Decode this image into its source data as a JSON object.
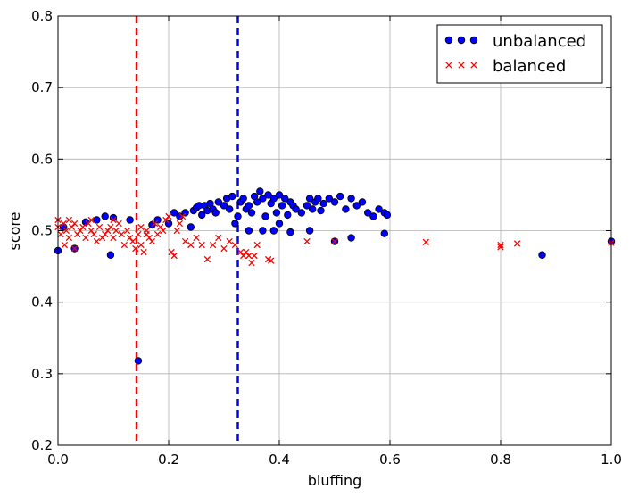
{
  "chart_data": {
    "type": "scatter",
    "xlabel": "bluffing",
    "ylabel": "score",
    "xlim": [
      0.0,
      1.0
    ],
    "ylim": [
      0.2,
      0.8
    ],
    "grid": true,
    "legend_position": "top-right",
    "x_ticks": [
      "0.0",
      "0.2",
      "0.4",
      "0.6",
      "0.8",
      "1.0"
    ],
    "y_ticks": [
      "0.2",
      "0.3",
      "0.4",
      "0.5",
      "0.6",
      "0.7",
      "0.8"
    ],
    "vlines": [
      {
        "x": 0.142,
        "color": "#ff0000",
        "style": "dashed"
      },
      {
        "x": 0.325,
        "color": "#0000ff",
        "style": "dashed"
      }
    ],
    "series": [
      {
        "name": "unbalanced",
        "marker": "circle",
        "color": "#0000ff",
        "points": [
          [
            0.0,
            0.472
          ],
          [
            0.01,
            0.505
          ],
          [
            0.03,
            0.475
          ],
          [
            0.05,
            0.512
          ],
          [
            0.07,
            0.515
          ],
          [
            0.085,
            0.52
          ],
          [
            0.1,
            0.518
          ],
          [
            0.095,
            0.466
          ],
          [
            0.13,
            0.515
          ],
          [
            0.145,
            0.318
          ],
          [
            0.17,
            0.508
          ],
          [
            0.18,
            0.515
          ],
          [
            0.2,
            0.51
          ],
          [
            0.21,
            0.525
          ],
          [
            0.22,
            0.52
          ],
          [
            0.23,
            0.525
          ],
          [
            0.24,
            0.505
          ],
          [
            0.245,
            0.528
          ],
          [
            0.25,
            0.532
          ],
          [
            0.255,
            0.535
          ],
          [
            0.26,
            0.522
          ],
          [
            0.265,
            0.535
          ],
          [
            0.27,
            0.528
          ],
          [
            0.275,
            0.538
          ],
          [
            0.28,
            0.53
          ],
          [
            0.285,
            0.525
          ],
          [
            0.29,
            0.54
          ],
          [
            0.3,
            0.535
          ],
          [
            0.305,
            0.545
          ],
          [
            0.31,
            0.53
          ],
          [
            0.315,
            0.548
          ],
          [
            0.32,
            0.51
          ],
          [
            0.325,
            0.52
          ],
          [
            0.33,
            0.54
          ],
          [
            0.335,
            0.545
          ],
          [
            0.34,
            0.53
          ],
          [
            0.345,
            0.535
          ],
          [
            0.35,
            0.525
          ],
          [
            0.355,
            0.548
          ],
          [
            0.36,
            0.54
          ],
          [
            0.365,
            0.555
          ],
          [
            0.37,
            0.545
          ],
          [
            0.375,
            0.52
          ],
          [
            0.38,
            0.55
          ],
          [
            0.385,
            0.538
          ],
          [
            0.39,
            0.545
          ],
          [
            0.395,
            0.525
          ],
          [
            0.4,
            0.55
          ],
          [
            0.405,
            0.535
          ],
          [
            0.41,
            0.545
          ],
          [
            0.415,
            0.522
          ],
          [
            0.42,
            0.54
          ],
          [
            0.425,
            0.535
          ],
          [
            0.43,
            0.53
          ],
          [
            0.44,
            0.525
          ],
          [
            0.45,
            0.535
          ],
          [
            0.455,
            0.545
          ],
          [
            0.46,
            0.53
          ],
          [
            0.465,
            0.54
          ],
          [
            0.47,
            0.545
          ],
          [
            0.475,
            0.528
          ],
          [
            0.48,
            0.538
          ],
          [
            0.49,
            0.545
          ],
          [
            0.5,
            0.54
          ],
          [
            0.51,
            0.548
          ],
          [
            0.52,
            0.53
          ],
          [
            0.53,
            0.545
          ],
          [
            0.54,
            0.535
          ],
          [
            0.55,
            0.54
          ],
          [
            0.56,
            0.525
          ],
          [
            0.57,
            0.52
          ],
          [
            0.58,
            0.53
          ],
          [
            0.59,
            0.525
          ],
          [
            0.595,
            0.522
          ],
          [
            0.39,
            0.5
          ],
          [
            0.345,
            0.5
          ],
          [
            0.37,
            0.5
          ],
          [
            0.5,
            0.485
          ],
          [
            0.53,
            0.49
          ],
          [
            0.59,
            0.496
          ],
          [
            0.875,
            0.466
          ],
          [
            1.0,
            0.485
          ],
          [
            0.42,
            0.498
          ],
          [
            0.455,
            0.5
          ],
          [
            0.4,
            0.51
          ]
        ]
      },
      {
        "name": "balanced",
        "marker": "x",
        "color": "#ff0000",
        "points": [
          [
            0.0,
            0.505
          ],
          [
            0.005,
            0.495
          ],
          [
            0.01,
            0.51
          ],
          [
            0.015,
            0.5
          ],
          [
            0.02,
            0.49
          ],
          [
            0.025,
            0.505
          ],
          [
            0.03,
            0.51
          ],
          [
            0.035,
            0.495
          ],
          [
            0.04,
            0.5
          ],
          [
            0.045,
            0.505
          ],
          [
            0.05,
            0.49
          ],
          [
            0.055,
            0.51
          ],
          [
            0.06,
            0.5
          ],
          [
            0.065,
            0.495
          ],
          [
            0.07,
            0.485
          ],
          [
            0.075,
            0.505
          ],
          [
            0.08,
            0.49
          ],
          [
            0.085,
            0.495
          ],
          [
            0.09,
            0.5
          ],
          [
            0.095,
            0.505
          ],
          [
            0.1,
            0.49
          ],
          [
            0.105,
            0.5
          ],
          [
            0.11,
            0.51
          ],
          [
            0.115,
            0.495
          ],
          [
            0.12,
            0.48
          ],
          [
            0.125,
            0.5
          ],
          [
            0.13,
            0.49
          ],
          [
            0.135,
            0.485
          ],
          [
            0.14,
            0.475
          ],
          [
            0.145,
            0.495
          ],
          [
            0.15,
            0.48
          ],
          [
            0.155,
            0.47
          ],
          [
            0.16,
            0.5
          ],
          [
            0.165,
            0.49
          ],
          [
            0.17,
            0.485
          ],
          [
            0.175,
            0.51
          ],
          [
            0.18,
            0.495
          ],
          [
            0.185,
            0.505
          ],
          [
            0.19,
            0.5
          ],
          [
            0.195,
            0.515
          ],
          [
            0.2,
            0.52
          ],
          [
            0.205,
            0.47
          ],
          [
            0.21,
            0.465
          ],
          [
            0.215,
            0.5
          ],
          [
            0.22,
            0.51
          ],
          [
            0.225,
            0.52
          ],
          [
            0.23,
            0.485
          ],
          [
            0.24,
            0.48
          ],
          [
            0.25,
            0.49
          ],
          [
            0.26,
            0.48
          ],
          [
            0.27,
            0.46
          ],
          [
            0.28,
            0.48
          ],
          [
            0.29,
            0.49
          ],
          [
            0.3,
            0.475
          ],
          [
            0.31,
            0.485
          ],
          [
            0.32,
            0.48
          ],
          [
            0.33,
            0.47
          ],
          [
            0.335,
            0.465
          ],
          [
            0.34,
            0.47
          ],
          [
            0.345,
            0.465
          ],
          [
            0.35,
            0.455
          ],
          [
            0.355,
            0.465
          ],
          [
            0.36,
            0.48
          ],
          [
            0.38,
            0.46
          ],
          [
            0.385,
            0.458
          ],
          [
            0.45,
            0.485
          ],
          [
            0.5,
            0.485
          ],
          [
            0.665,
            0.484
          ],
          [
            0.8,
            0.48
          ],
          [
            0.8,
            0.477
          ],
          [
            0.83,
            0.482
          ],
          [
            1.0,
            0.483
          ],
          [
            0.012,
            0.48
          ],
          [
            0.0,
            0.515
          ],
          [
            0.02,
            0.515
          ],
          [
            0.1,
            0.515
          ],
          [
            0.06,
            0.515
          ],
          [
            0.03,
            0.475
          ],
          [
            0.15,
            0.505
          ],
          [
            0.16,
            0.495
          ]
        ]
      }
    ]
  }
}
